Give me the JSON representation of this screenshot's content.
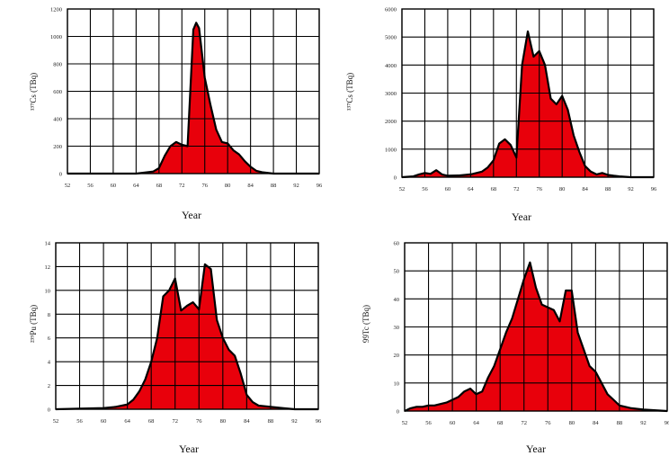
{
  "colors": {
    "fill": "#e8000b",
    "outline": "#000000",
    "grid": "#000000"
  },
  "chart_data": [
    {
      "type": "area",
      "xlabel": "Year",
      "ylabel": "¹³⁷Cs (TBq)",
      "xlim": [
        52,
        96
      ],
      "ylim": [
        0,
        1200
      ],
      "xticks": [
        "52",
        "56",
        "60",
        "64",
        "68",
        "72",
        "76",
        "80",
        "84",
        "88",
        "92",
        "96"
      ],
      "yticks": [
        "0",
        "200",
        "400",
        "600",
        "800",
        "1000",
        "1200"
      ],
      "grid": true,
      "x": [
        52,
        56,
        60,
        64,
        66,
        67,
        68,
        69,
        70,
        71,
        72,
        73,
        74,
        74.5,
        75,
        76,
        77,
        78,
        79,
        80,
        81,
        82,
        83,
        84,
        85,
        86,
        88,
        92,
        96
      ],
      "values": [
        0,
        0,
        0,
        0,
        10,
        15,
        40,
        130,
        200,
        230,
        210,
        200,
        1050,
        1100,
        1060,
        700,
        500,
        320,
        230,
        220,
        170,
        140,
        90,
        50,
        20,
        10,
        0,
        0,
        0
      ]
    },
    {
      "type": "area",
      "xlabel": "Year",
      "ylabel": "¹³⁷Cs (TBq)",
      "xlim": [
        52,
        96
      ],
      "ylim": [
        0,
        6000
      ],
      "xticks": [
        "52",
        "56",
        "60",
        "64",
        "68",
        "72",
        "76",
        "80",
        "84",
        "88",
        "92",
        "96"
      ],
      "yticks": [
        "0",
        "1000",
        "2000",
        "3000",
        "4000",
        "5000",
        "6000"
      ],
      "grid": true,
      "x": [
        52,
        54,
        55,
        56,
        57,
        58,
        59,
        60,
        62,
        64,
        66,
        67,
        68,
        69,
        70,
        71,
        72,
        73,
        74,
        75,
        76,
        77,
        78,
        79,
        80,
        81,
        82,
        83,
        84,
        85,
        86,
        87,
        88,
        89,
        90,
        92,
        96
      ],
      "values": [
        0,
        30,
        100,
        150,
        120,
        250,
        100,
        50,
        60,
        100,
        200,
        350,
        600,
        1200,
        1350,
        1150,
        700,
        4000,
        5200,
        4300,
        4500,
        4000,
        2800,
        2600,
        2900,
        2400,
        1500,
        900,
        400,
        200,
        100,
        150,
        80,
        50,
        30,
        0,
        0
      ]
    },
    {
      "type": "area",
      "xlabel": "Year",
      "ylabel": "²³⁹Pu (TBq)",
      "xlim": [
        52,
        96
      ],
      "ylim": [
        0,
        14
      ],
      "xticks": [
        "52",
        "56",
        "60",
        "64",
        "68",
        "72",
        "76",
        "80",
        "84",
        "88",
        "92",
        "96"
      ],
      "yticks": [
        "0",
        "2",
        "4",
        "6",
        "8",
        "10",
        "12",
        "14"
      ],
      "grid": true,
      "x": [
        52,
        56,
        60,
        62,
        64,
        65,
        66,
        67,
        68,
        69,
        70,
        71,
        72,
        73,
        74,
        75,
        76,
        77,
        78,
        79,
        80,
        81,
        82,
        83,
        84,
        85,
        86,
        88,
        90,
        92,
        96
      ],
      "values": [
        0,
        0.05,
        0.1,
        0.2,
        0.4,
        0.8,
        1.5,
        2.5,
        4,
        6,
        9.5,
        10,
        11,
        8.3,
        8.7,
        9,
        8.4,
        12.2,
        11.8,
        7.5,
        6,
        5,
        4.5,
        3,
        1.2,
        0.6,
        0.3,
        0.2,
        0.1,
        0,
        0
      ]
    },
    {
      "type": "area",
      "xlabel": "Year",
      "ylabel": "99Tc (TBq)",
      "xlim": [
        52,
        96
      ],
      "ylim": [
        0,
        60
      ],
      "xticks": [
        "52",
        "56",
        "60",
        "64",
        "68",
        "72",
        "76",
        "80",
        "84",
        "88",
        "92",
        "96"
      ],
      "yticks": [
        "0",
        "10",
        "20",
        "30",
        "40",
        "50",
        "60"
      ],
      "grid": true,
      "x": [
        52,
        53,
        54,
        55,
        56,
        57,
        58,
        59,
        60,
        61,
        62,
        63,
        64,
        65,
        66,
        67,
        68,
        69,
        70,
        71,
        72,
        73,
        74,
        75,
        76,
        77,
        78,
        79,
        80,
        81,
        82,
        83,
        84,
        85,
        86,
        87,
        88,
        90,
        92,
        96
      ],
      "values": [
        0,
        1,
        1.5,
        1.5,
        2,
        2,
        2.5,
        3,
        4,
        5,
        7,
        8,
        6,
        7,
        12,
        16,
        22,
        28,
        33,
        40,
        47,
        53,
        44,
        38,
        37,
        36,
        32,
        43,
        43,
        28,
        22,
        16,
        14,
        10,
        6,
        4,
        2,
        1,
        0.5,
        0
      ]
    }
  ]
}
